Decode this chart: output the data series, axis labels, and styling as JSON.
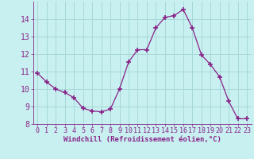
{
  "x": [
    0,
    1,
    2,
    3,
    4,
    5,
    6,
    7,
    8,
    9,
    10,
    11,
    12,
    13,
    14,
    15,
    16,
    17,
    18,
    19,
    20,
    21,
    22,
    23
  ],
  "y": [
    10.9,
    10.4,
    10.0,
    9.8,
    9.5,
    8.9,
    8.75,
    8.7,
    8.85,
    10.0,
    11.55,
    12.25,
    12.25,
    13.5,
    14.1,
    14.2,
    14.55,
    13.5,
    11.95,
    11.4,
    10.7,
    9.3,
    8.3,
    8.3
  ],
  "line_color": "#882288",
  "marker": "+",
  "marker_size": 4,
  "marker_lw": 1.2,
  "bg_color": "#c8f0f0",
  "grid_color": "#a8d8d8",
  "xlabel": "Windchill (Refroidissement éolien,°C)",
  "xlim": [
    -0.5,
    23.5
  ],
  "ylim": [
    8,
    15
  ],
  "yticks": [
    8,
    9,
    10,
    11,
    12,
    13,
    14
  ],
  "xticks": [
    0,
    1,
    2,
    3,
    4,
    5,
    6,
    7,
    8,
    9,
    10,
    11,
    12,
    13,
    14,
    15,
    16,
    17,
    18,
    19,
    20,
    21,
    22,
    23
  ],
  "xlabel_color": "#882288",
  "tick_color": "#882288",
  "tick_fontsize": 6,
  "xlabel_fontsize": 6.5
}
